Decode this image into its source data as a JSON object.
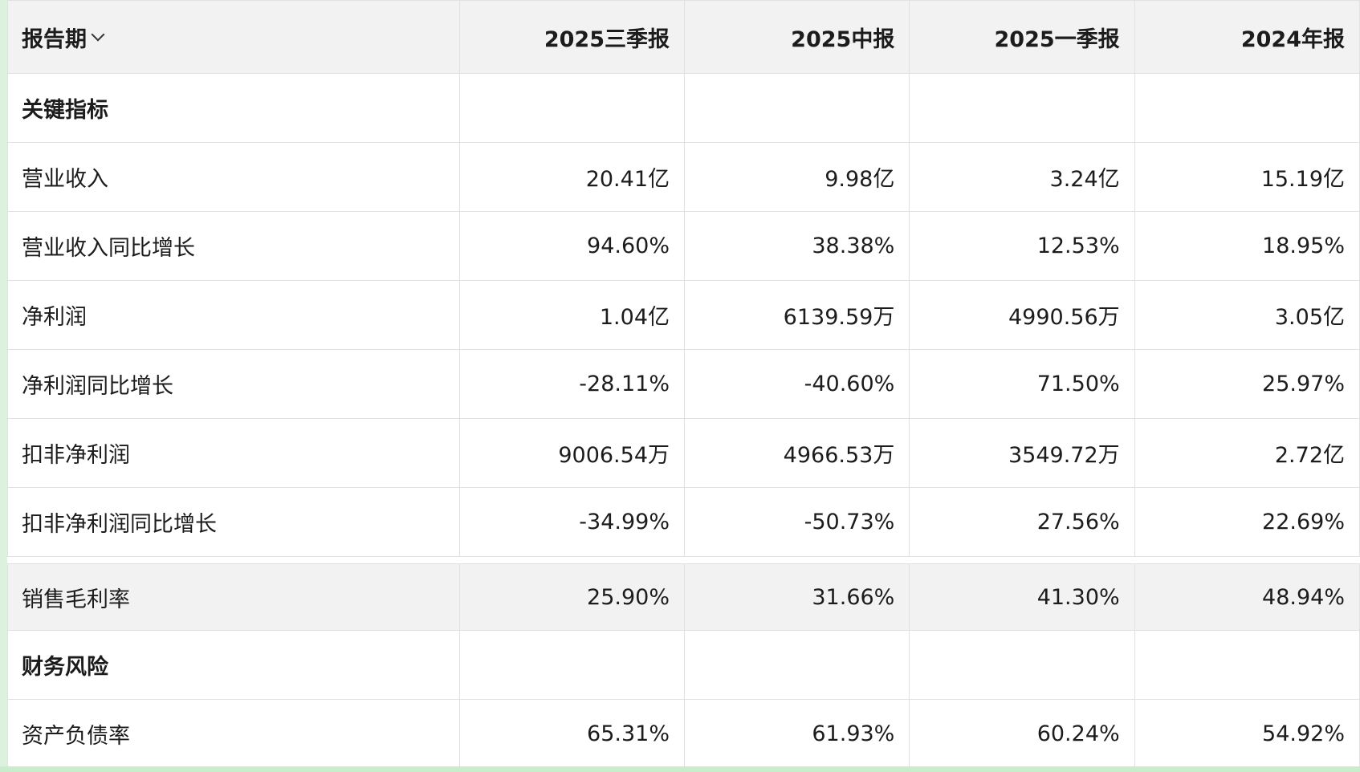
{
  "header": {
    "period_label": "报告期",
    "periods": [
      "2025三季报",
      "2025中报",
      "2025一季报",
      "2024年报"
    ]
  },
  "rows": {
    "key_indicators": {
      "label": "关键指标"
    },
    "revenue": {
      "label": "营业收入",
      "values": [
        "20.41亿",
        "9.98亿",
        "3.24亿",
        "15.19亿"
      ]
    },
    "revenue_yoy": {
      "label": "营业收入同比增长",
      "values": [
        "94.60%",
        "38.38%",
        "12.53%",
        "18.95%"
      ]
    },
    "net_profit": {
      "label": "净利润",
      "values": [
        "1.04亿",
        "6139.59万",
        "4990.56万",
        "3.05亿"
      ]
    },
    "net_profit_yoy": {
      "label": "净利润同比增长",
      "values": [
        "-28.11%",
        "-40.60%",
        "71.50%",
        "25.97%"
      ]
    },
    "deducted_net_profit": {
      "label": "扣非净利润",
      "values": [
        "9006.54万",
        "4966.53万",
        "3549.72万",
        "2.72亿"
      ]
    },
    "deducted_net_profit_yoy": {
      "label": "扣非净利润同比增长",
      "values": [
        "-34.99%",
        "-50.73%",
        "27.56%",
        "22.69%"
      ]
    },
    "gross_margin": {
      "label": "销售毛利率",
      "values": [
        "25.90%",
        "31.66%",
        "41.30%",
        "48.94%"
      ]
    },
    "financial_risk": {
      "label": "财务风险"
    },
    "debt_ratio": {
      "label": "资产负债率",
      "values": [
        "65.31%",
        "61.93%",
        "60.24%",
        "54.92%"
      ]
    }
  },
  "colors": {
    "header_bg": "#f2f2f2",
    "border": "#e1e1e1",
    "edge_green": "#ddf2de"
  }
}
